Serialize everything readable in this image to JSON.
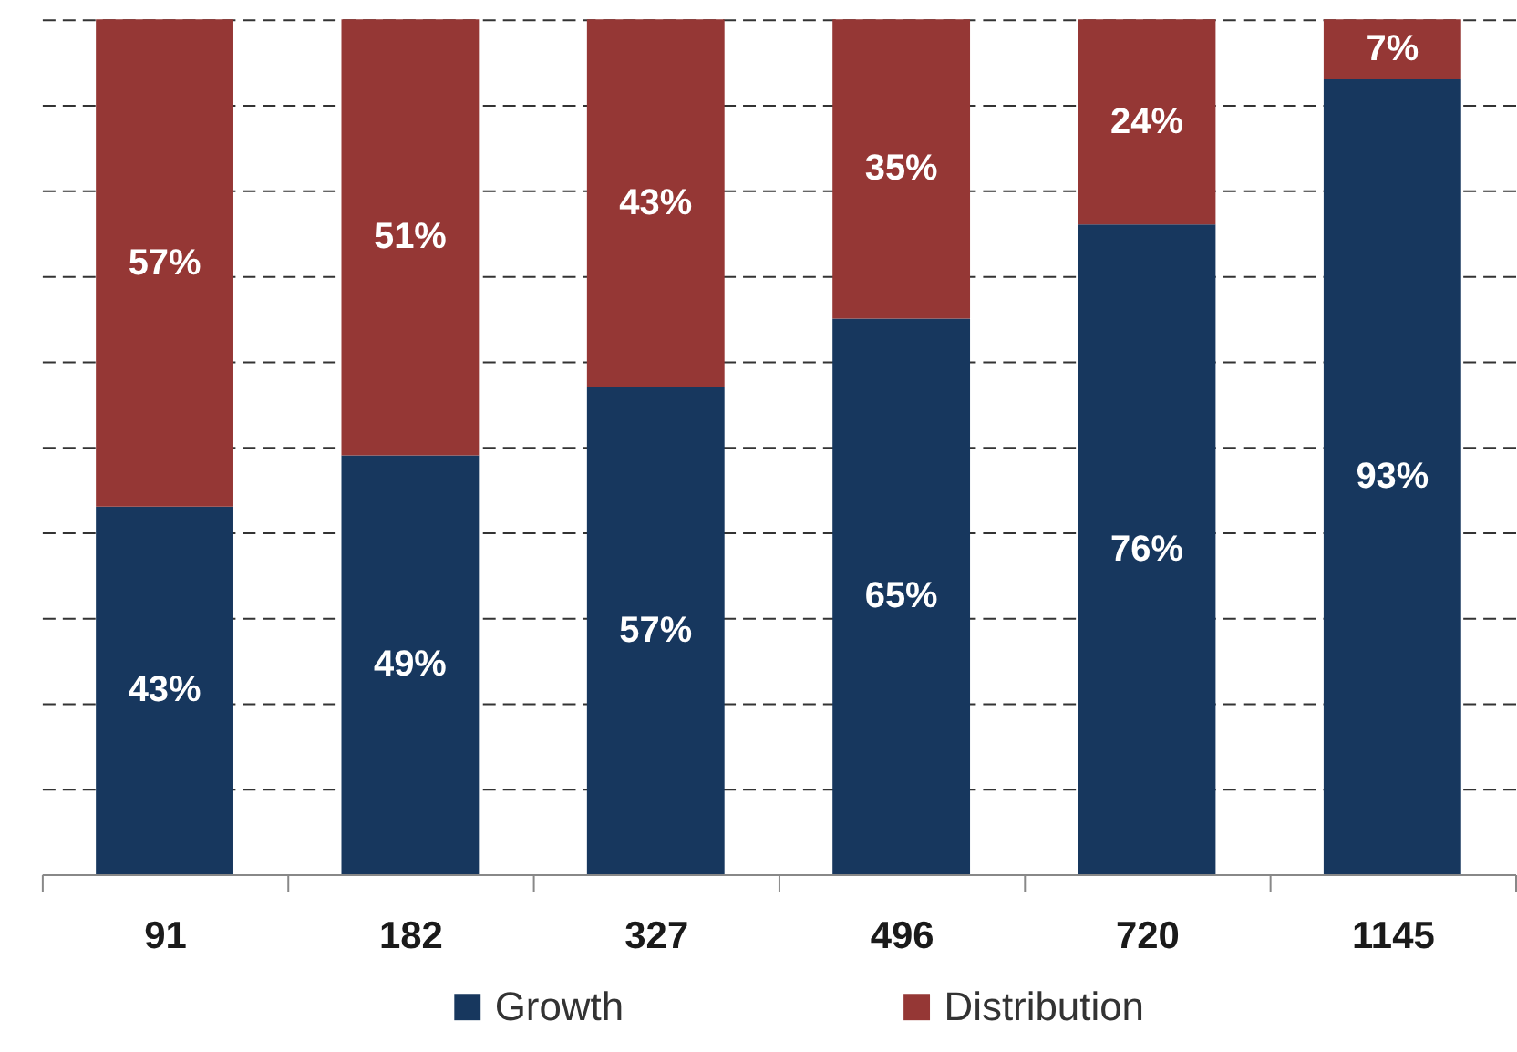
{
  "chart_data": {
    "type": "bar",
    "stacked": true,
    "categories": [
      "91",
      "182",
      "327",
      "496",
      "720",
      "1145"
    ],
    "series": [
      {
        "name": "Growth",
        "color": "#17375e",
        "values": [
          43,
          49,
          57,
          65,
          76,
          93
        ],
        "value_labels": [
          "43%",
          "49%",
          "57%",
          "65%",
          "76%",
          "93%"
        ]
      },
      {
        "name": "Distribution",
        "color": "#953735",
        "values": [
          57,
          51,
          43,
          35,
          24,
          7
        ],
        "value_labels": [
          "57%",
          "51%",
          "43%",
          "35%",
          "24%",
          "7%"
        ]
      }
    ],
    "ylim": [
      0,
      100
    ],
    "yticks": [
      {
        "value": 0,
        "label": null
      },
      {
        "value": 10,
        "label": null
      },
      {
        "value": 20,
        "label": null
      },
      {
        "value": 30,
        "label": null
      },
      {
        "value": 40,
        "label": null
      },
      {
        "value": 50,
        "label": null
      },
      {
        "value": 60,
        "label": null
      },
      {
        "value": 70,
        "label": null
      },
      {
        "value": 80,
        "label": null
      },
      {
        "value": 90,
        "label": null
      },
      {
        "value": 100,
        "label": null
      }
    ],
    "tick_labels": "x",
    "grid": "y",
    "legend": "bottom"
  }
}
